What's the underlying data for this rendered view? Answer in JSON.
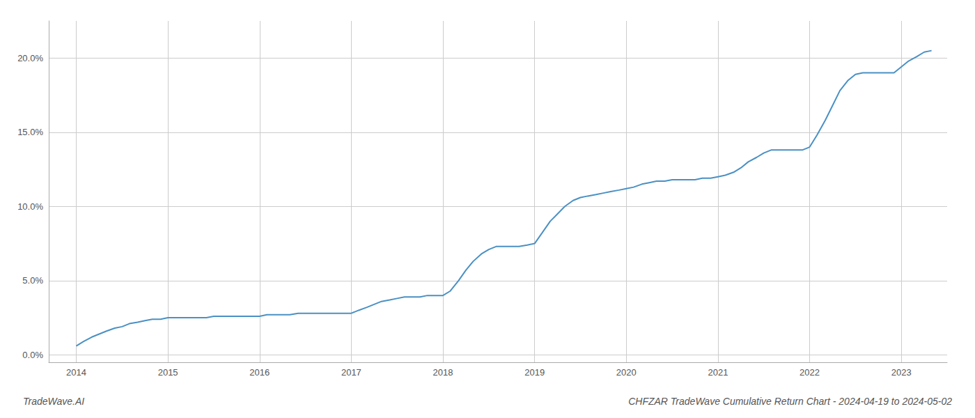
{
  "chart_data": {
    "type": "line",
    "title": "CHFZAR TradeWave Cumulative Return Chart - 2024-04-19 to 2024-05-02",
    "annotations": [
      "TradeWave.AI"
    ],
    "color": "#4a90c4",
    "x": [
      2014.0,
      2014.08,
      2014.17,
      2014.25,
      2014.33,
      2014.42,
      2014.5,
      2014.58,
      2014.67,
      2014.75,
      2014.83,
      2014.92,
      2015.0,
      2015.08,
      2015.17,
      2015.25,
      2015.33,
      2015.42,
      2015.5,
      2015.58,
      2015.67,
      2015.75,
      2015.83,
      2015.92,
      2016.0,
      2016.08,
      2016.17,
      2016.25,
      2016.33,
      2016.42,
      2016.5,
      2016.58,
      2016.67,
      2016.75,
      2016.83,
      2016.92,
      2017.0,
      2017.08,
      2017.17,
      2017.25,
      2017.33,
      2017.42,
      2017.5,
      2017.58,
      2017.67,
      2017.75,
      2017.83,
      2017.92,
      2018.0,
      2018.08,
      2018.17,
      2018.25,
      2018.33,
      2018.42,
      2018.5,
      2018.58,
      2018.67,
      2018.75,
      2018.83,
      2018.92,
      2019.0,
      2019.08,
      2019.17,
      2019.25,
      2019.33,
      2019.42,
      2019.5,
      2019.58,
      2019.67,
      2019.75,
      2019.83,
      2019.92,
      2020.0,
      2020.08,
      2020.17,
      2020.25,
      2020.33,
      2020.42,
      2020.5,
      2020.58,
      2020.67,
      2020.75,
      2020.83,
      2020.92,
      2021.0,
      2021.08,
      2021.17,
      2021.25,
      2021.33,
      2021.42,
      2021.5,
      2021.58,
      2021.67,
      2021.75,
      2021.83,
      2021.92,
      2022.0,
      2022.08,
      2022.17,
      2022.25,
      2022.33,
      2022.42,
      2022.5,
      2022.58,
      2022.67,
      2022.75,
      2022.83,
      2022.92,
      2023.0,
      2023.08,
      2023.17,
      2023.25,
      2023.33
    ],
    "values": [
      0.006,
      0.009,
      0.012,
      0.014,
      0.016,
      0.018,
      0.019,
      0.021,
      0.022,
      0.023,
      0.024,
      0.024,
      0.025,
      0.025,
      0.025,
      0.025,
      0.025,
      0.025,
      0.026,
      0.026,
      0.026,
      0.026,
      0.026,
      0.026,
      0.026,
      0.027,
      0.027,
      0.027,
      0.027,
      0.028,
      0.028,
      0.028,
      0.028,
      0.028,
      0.028,
      0.028,
      0.028,
      0.03,
      0.032,
      0.034,
      0.036,
      0.037,
      0.038,
      0.039,
      0.039,
      0.039,
      0.04,
      0.04,
      0.04,
      0.043,
      0.05,
      0.057,
      0.063,
      0.068,
      0.071,
      0.073,
      0.073,
      0.073,
      0.073,
      0.074,
      0.075,
      0.082,
      0.09,
      0.095,
      0.1,
      0.104,
      0.106,
      0.107,
      0.108,
      0.109,
      0.11,
      0.111,
      0.112,
      0.113,
      0.115,
      0.116,
      0.117,
      0.117,
      0.118,
      0.118,
      0.118,
      0.118,
      0.119,
      0.119,
      0.12,
      0.121,
      0.123,
      0.126,
      0.13,
      0.133,
      0.136,
      0.138,
      0.138,
      0.138,
      0.138,
      0.138,
      0.14,
      0.148,
      0.158,
      0.168,
      0.178,
      0.185,
      0.189,
      0.19,
      0.19,
      0.19,
      0.19,
      0.19,
      0.194,
      0.198,
      0.201,
      0.204,
      0.205
    ],
    "xlim": [
      2013.7,
      2023.5
    ],
    "xticks": [
      2014,
      2015,
      2016,
      2017,
      2018,
      2019,
      2020,
      2021,
      2022,
      2023
    ],
    "ylim": [
      -0.005,
      0.225
    ],
    "yticks": [
      {
        "value": 0.0,
        "label": "0.0%"
      },
      {
        "value": 0.05,
        "label": "5.0%"
      },
      {
        "value": 0.1,
        "label": "10.0%"
      },
      {
        "value": 0.15,
        "label": "15.0%"
      },
      {
        "value": 0.2,
        "label": "20.0%"
      }
    ],
    "grid": true
  }
}
